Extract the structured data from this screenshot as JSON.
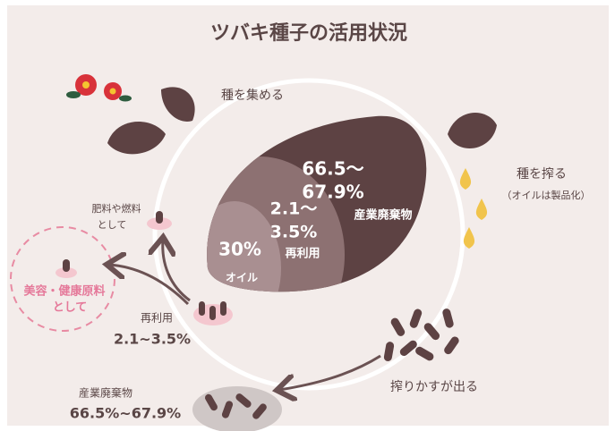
{
  "title": "ツバキ種子の活用状況",
  "steps": [
    {
      "label": "種を集める"
    },
    {
      "label": "種を搾る",
      "note": "（オイルは製品化）"
    },
    {
      "label": "搾りかすが出る"
    }
  ],
  "seed_breakdown": [
    {
      "value": [
        "66.5～",
        "67.9%"
      ],
      "label": "産業廃棄物"
    },
    {
      "value": [
        "2.1～",
        "3.5%"
      ],
      "label": "再利用"
    },
    {
      "value": [
        "30%"
      ],
      "label": "オイル"
    }
  ],
  "uses": {
    "fertilizer": [
      "肥料や燃料",
      "として"
    ],
    "beauty": [
      "美容・健康原料",
      "として"
    ]
  },
  "reuse": {
    "label": "再利用",
    "value": "2.1~3.5%"
  },
  "waste": {
    "label": "産業廃棄物",
    "value": "66.5%~67.9%"
  }
}
